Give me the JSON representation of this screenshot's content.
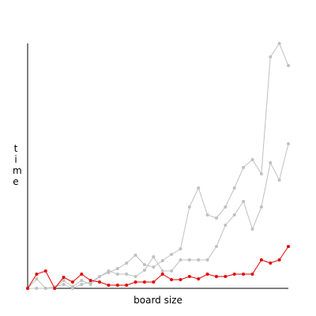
{
  "chart_data": {
    "type": "line",
    "x_label": "board size",
    "y_label": "time",
    "x": [
      0,
      1,
      2,
      3,
      4,
      5,
      6,
      7,
      8,
      9,
      10,
      11,
      12,
      13,
      14,
      15,
      16,
      17,
      18,
      19,
      20,
      21,
      22,
      23,
      24,
      25,
      26,
      27,
      28,
      29
    ],
    "xlim": [
      0,
      29
    ],
    "ylim": [
      0,
      310
    ],
    "series": [
      {
        "color": "#c0c0c0",
        "values": [
          0,
          12,
          0,
          0,
          10,
          2,
          10,
          5,
          15,
          20,
          25,
          32,
          42,
          30,
          27,
          35,
          43,
          50,
          103,
          127,
          93,
          89,
          103,
          127,
          153,
          163,
          145,
          293,
          310,
          282
        ]
      },
      {
        "color": "#c0c0c0",
        "values": [
          0,
          0,
          0,
          2,
          5,
          0,
          5,
          8,
          15,
          22,
          18,
          18,
          15,
          23,
          40,
          22,
          22,
          36,
          36,
          36,
          36,
          53,
          80,
          93,
          110,
          75,
          103,
          159,
          137,
          183
        ]
      },
      {
        "color": "#e00000",
        "values": [
          0,
          18,
          22,
          0,
          14,
          8,
          18,
          10,
          8,
          4,
          4,
          4,
          8,
          8,
          8,
          18,
          11,
          11,
          15,
          12,
          18,
          15,
          15,
          18,
          18,
          18,
          36,
          32,
          36,
          53
        ]
      }
    ]
  }
}
